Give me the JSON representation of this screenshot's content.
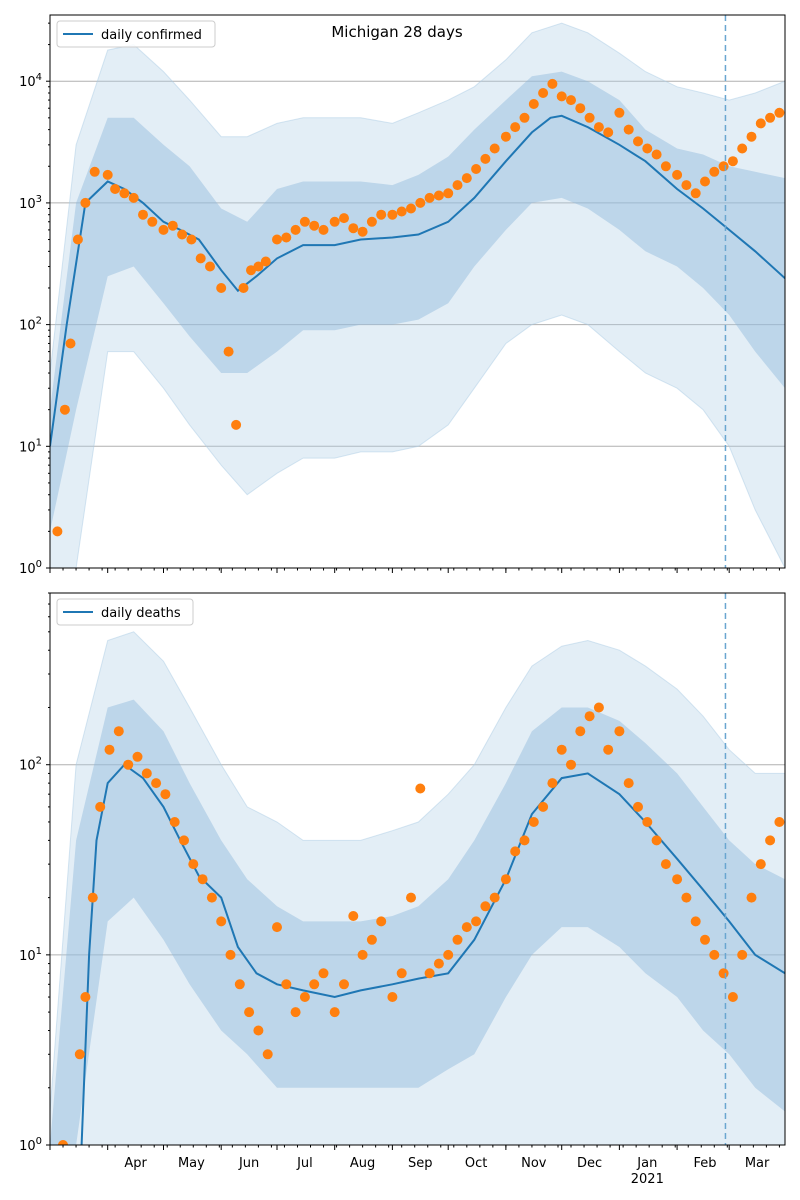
{
  "chart_data": [
    {
      "type": "line",
      "title": "Michigan 28 days",
      "legend": {
        "entries": [
          "daily confirmed"
        ],
        "placement": "upper-left"
      },
      "yscale": "log",
      "ylim": [
        1,
        35000
      ],
      "xlim": [
        "2020-03-01",
        "2021-03-31"
      ],
      "grid": "y-major",
      "y_ticks": [
        1,
        10,
        100,
        1000,
        10000
      ],
      "y_tick_labels": [
        "10^0",
        "10^1",
        "10^2",
        "10^3",
        "10^4"
      ],
      "vline_date": "2021-02-27",
      "bands": {
        "x": [
          "2020-03-01",
          "2020-03-15",
          "2020-04-01",
          "2020-04-15",
          "2020-05-01",
          "2020-05-15",
          "2020-06-01",
          "2020-06-15",
          "2020-07-01",
          "2020-07-15",
          "2020-08-01",
          "2020-08-15",
          "2020-09-01",
          "2020-09-15",
          "2020-10-01",
          "2020-10-15",
          "2020-11-01",
          "2020-11-15",
          "2020-12-01",
          "2020-12-15",
          "2021-01-01",
          "2021-01-15",
          "2021-02-01",
          "2021-02-15",
          "2021-03-01",
          "2021-03-15",
          "2021-03-31"
        ],
        "outer_upper": [
          40,
          3000,
          18000,
          20000,
          12000,
          7000,
          3500,
          3500,
          4500,
          5000,
          5000,
          5000,
          4500,
          5500,
          7000,
          9000,
          15000,
          25000,
          30000,
          25000,
          17000,
          12000,
          9000,
          8000,
          7000,
          8000,
          10000
        ],
        "outer_lower": [
          0.5,
          1,
          60,
          60,
          30,
          15,
          7,
          4,
          6,
          8,
          8,
          9,
          9,
          10,
          15,
          30,
          70,
          100,
          120,
          100,
          60,
          40,
          30,
          20,
          10,
          3,
          1
        ],
        "inner_upper": [
          20,
          1000,
          5000,
          5000,
          3000,
          2000,
          900,
          700,
          1300,
          1500,
          1500,
          1500,
          1400,
          1700,
          2400,
          4000,
          7000,
          11000,
          12000,
          10000,
          7000,
          4000,
          2800,
          2500,
          2000,
          1800,
          1600
        ],
        "inner_lower": [
          2,
          20,
          250,
          300,
          150,
          80,
          40,
          40,
          60,
          90,
          90,
          100,
          100,
          110,
          150,
          300,
          600,
          1000,
          1100,
          900,
          600,
          400,
          300,
          200,
          120,
          60,
          30
        ]
      },
      "series": [
        {
          "name": "daily confirmed",
          "kind": "line",
          "x": [
            "2020-03-01",
            "2020-03-10",
            "2020-03-20",
            "2020-04-01",
            "2020-04-10",
            "2020-04-20",
            "2020-05-01",
            "2020-05-10",
            "2020-05-20",
            "2020-06-01",
            "2020-06-10",
            "2020-06-20",
            "2020-07-01",
            "2020-07-15",
            "2020-08-01",
            "2020-08-15",
            "2020-09-01",
            "2020-09-15",
            "2020-10-01",
            "2020-10-15",
            "2020-11-01",
            "2020-11-15",
            "2020-11-25",
            "2020-12-01",
            "2020-12-15",
            "2021-01-01",
            "2021-01-15",
            "2021-02-01",
            "2021-02-15",
            "2021-03-01",
            "2021-03-15",
            "2021-03-31"
          ],
          "y": [
            10,
            100,
            1000,
            1500,
            1300,
            1000,
            700,
            600,
            500,
            280,
            190,
            250,
            350,
            450,
            450,
            500,
            520,
            550,
            700,
            1100,
            2200,
            3800,
            5000,
            5200,
            4200,
            3000,
            2200,
            1300,
            900,
            600,
            400,
            240
          ]
        },
        {
          "name": "daily confirmed observations",
          "kind": "scatter",
          "x": [
            "2020-03-05",
            "2020-03-09",
            "2020-03-12",
            "2020-03-16",
            "2020-03-20",
            "2020-03-25",
            "2020-04-01",
            "2020-04-05",
            "2020-04-10",
            "2020-04-15",
            "2020-04-20",
            "2020-04-25",
            "2020-05-01",
            "2020-05-06",
            "2020-05-11",
            "2020-05-16",
            "2020-05-21",
            "2020-05-26",
            "2020-06-01",
            "2020-06-05",
            "2020-06-09",
            "2020-06-13",
            "2020-06-17",
            "2020-06-21",
            "2020-06-25",
            "2020-07-01",
            "2020-07-06",
            "2020-07-11",
            "2020-07-16",
            "2020-07-21",
            "2020-07-26",
            "2020-08-01",
            "2020-08-06",
            "2020-08-11",
            "2020-08-16",
            "2020-08-21",
            "2020-08-26",
            "2020-09-01",
            "2020-09-06",
            "2020-09-11",
            "2020-09-16",
            "2020-09-21",
            "2020-09-26",
            "2020-10-01",
            "2020-10-06",
            "2020-10-11",
            "2020-10-16",
            "2020-10-21",
            "2020-10-26",
            "2020-11-01",
            "2020-11-06",
            "2020-11-11",
            "2020-11-16",
            "2020-11-21",
            "2020-11-26",
            "2020-12-01",
            "2020-12-06",
            "2020-12-11",
            "2020-12-16",
            "2020-12-21",
            "2020-12-26",
            "2021-01-01",
            "2021-01-06",
            "2021-01-11",
            "2021-01-16",
            "2021-01-21",
            "2021-01-26",
            "2021-02-01",
            "2021-02-06",
            "2021-02-11",
            "2021-02-16",
            "2021-02-21",
            "2021-02-26",
            "2021-03-03",
            "2021-03-08",
            "2021-03-13",
            "2021-03-18",
            "2021-03-23",
            "2021-03-28"
          ],
          "y": [
            2,
            20,
            70,
            500,
            1000,
            1800,
            1700,
            1300,
            1200,
            1100,
            800,
            700,
            600,
            650,
            550,
            500,
            350,
            300,
            200,
            60,
            15,
            200,
            280,
            300,
            330,
            500,
            520,
            600,
            700,
            650,
            600,
            700,
            750,
            620,
            580,
            700,
            800,
            800,
            850,
            900,
            1000,
            1100,
            1150,
            1200,
            1400,
            1600,
            1900,
            2300,
            2800,
            3500,
            4200,
            5000,
            6500,
            8000,
            9500,
            7500,
            7000,
            6000,
            5000,
            4200,
            3800,
            5500,
            4000,
            3200,
            2800,
            2500,
            2000,
            1700,
            1400,
            1200,
            1500,
            1800,
            2000,
            2200,
            2800,
            3500,
            4500,
            5000,
            5500
          ]
        }
      ]
    },
    {
      "type": "line",
      "legend": {
        "entries": [
          "daily deaths"
        ],
        "placement": "upper-left"
      },
      "yscale": "log",
      "ylim": [
        1,
        800
      ],
      "xlim": [
        "2020-03-01",
        "2021-03-31"
      ],
      "grid": "y-major",
      "y_ticks": [
        1,
        10,
        100
      ],
      "y_tick_labels": [
        "10^0",
        "10^1",
        "10^2"
      ],
      "x_tick_labels": [
        "Apr",
        "May",
        "Jun",
        "Jul",
        "Aug",
        "Sep",
        "Oct",
        "Nov",
        "Dec",
        "Jan",
        "Feb",
        "Mar"
      ],
      "x_tick_dates": [
        "2020-04-01",
        "2020-05-01",
        "2020-06-01",
        "2020-07-01",
        "2020-08-01",
        "2020-09-01",
        "2020-10-01",
        "2020-11-01",
        "2020-12-01",
        "2021-01-01",
        "2021-02-01",
        "2021-03-01"
      ],
      "x_year_label": "2021",
      "x_year_date": "2021-01-01",
      "vline_date": "2021-02-27",
      "bands": {
        "x": [
          "2020-03-01",
          "2020-03-15",
          "2020-04-01",
          "2020-04-15",
          "2020-05-01",
          "2020-05-15",
          "2020-06-01",
          "2020-06-15",
          "2020-07-01",
          "2020-07-15",
          "2020-08-01",
          "2020-08-15",
          "2020-09-01",
          "2020-09-15",
          "2020-10-01",
          "2020-10-15",
          "2020-11-01",
          "2020-11-15",
          "2020-12-01",
          "2020-12-15",
          "2021-01-01",
          "2021-01-15",
          "2021-02-01",
          "2021-02-15",
          "2021-03-01",
          "2021-03-15",
          "2021-03-31"
        ],
        "outer_upper": [
          1.5,
          100,
          450,
          500,
          350,
          200,
          100,
          60,
          50,
          40,
          40,
          40,
          45,
          50,
          70,
          100,
          200,
          330,
          420,
          450,
          400,
          330,
          250,
          180,
          120,
          90,
          90
        ],
        "outer_lower": [
          0.5,
          0.5,
          1,
          1,
          1,
          1,
          1,
          1,
          1,
          1,
          1,
          1,
          1,
          1,
          1,
          1,
          1,
          1,
          1,
          1,
          1,
          1,
          1,
          1,
          1,
          1,
          1
        ],
        "inner_upper": [
          1,
          40,
          200,
          220,
          150,
          80,
          40,
          25,
          18,
          15,
          15,
          15,
          16,
          18,
          25,
          40,
          80,
          150,
          200,
          200,
          170,
          130,
          90,
          60,
          40,
          30,
          25
        ],
        "inner_lower": [
          0.5,
          1,
          15,
          20,
          12,
          7,
          4,
          3,
          2,
          2,
          2,
          2,
          2,
          2,
          2.5,
          3,
          6,
          10,
          14,
          14,
          11,
          8,
          6,
          4,
          3,
          2,
          1.5
        ]
      },
      "series": [
        {
          "name": "daily deaths",
          "kind": "line",
          "x": [
            "2020-03-18",
            "2020-03-22",
            "2020-03-26",
            "2020-04-01",
            "2020-04-10",
            "2020-04-20",
            "2020-05-01",
            "2020-05-10",
            "2020-05-20",
            "2020-06-01",
            "2020-06-10",
            "2020-06-20",
            "2020-07-01",
            "2020-07-15",
            "2020-08-01",
            "2020-08-15",
            "2020-09-01",
            "2020-09-15",
            "2020-10-01",
            "2020-10-15",
            "2020-11-01",
            "2020-11-15",
            "2020-12-01",
            "2020-12-15",
            "2021-01-01",
            "2021-01-15",
            "2021-02-01",
            "2021-02-15",
            "2021-03-01",
            "2021-03-15",
            "2021-03-31"
          ],
          "y": [
            1,
            10,
            40,
            80,
            100,
            85,
            60,
            40,
            26,
            20,
            11,
            8,
            7,
            6.5,
            6,
            6.5,
            7,
            7.5,
            8,
            12,
            25,
            55,
            85,
            90,
            70,
            50,
            32,
            22,
            15,
            10,
            8
          ]
        },
        {
          "name": "daily deaths observations",
          "kind": "scatter",
          "x": [
            "2020-03-08",
            "2020-03-17",
            "2020-03-20",
            "2020-03-24",
            "2020-03-28",
            "2020-04-02",
            "2020-04-07",
            "2020-04-12",
            "2020-04-17",
            "2020-04-22",
            "2020-04-27",
            "2020-05-02",
            "2020-05-07",
            "2020-05-12",
            "2020-05-17",
            "2020-05-22",
            "2020-05-27",
            "2020-06-01",
            "2020-06-06",
            "2020-06-11",
            "2020-06-16",
            "2020-06-21",
            "2020-06-26",
            "2020-07-01",
            "2020-07-06",
            "2020-07-11",
            "2020-07-16",
            "2020-07-21",
            "2020-07-26",
            "2020-08-01",
            "2020-08-06",
            "2020-08-11",
            "2020-08-16",
            "2020-08-21",
            "2020-08-26",
            "2020-09-01",
            "2020-09-06",
            "2020-09-11",
            "2020-09-16",
            "2020-09-21",
            "2020-09-26",
            "2020-10-01",
            "2020-10-06",
            "2020-10-11",
            "2020-10-16",
            "2020-10-21",
            "2020-10-26",
            "2020-11-01",
            "2020-11-06",
            "2020-11-11",
            "2020-11-16",
            "2020-11-21",
            "2020-11-26",
            "2020-12-01",
            "2020-12-06",
            "2020-12-11",
            "2020-12-16",
            "2020-12-21",
            "2020-12-26",
            "2021-01-01",
            "2021-01-06",
            "2021-01-11",
            "2021-01-16",
            "2021-01-21",
            "2021-01-26",
            "2021-02-01",
            "2021-02-06",
            "2021-02-11",
            "2021-02-16",
            "2021-02-21",
            "2021-02-26",
            "2021-03-03",
            "2021-03-08",
            "2021-03-13",
            "2021-03-18",
            "2021-03-23",
            "2021-03-28"
          ],
          "y": [
            1,
            3,
            6,
            20,
            60,
            120,
            150,
            100,
            110,
            90,
            80,
            70,
            50,
            40,
            30,
            25,
            20,
            15,
            10,
            7,
            5,
            4,
            3,
            14,
            7,
            5,
            6,
            7,
            8,
            5,
            7,
            16,
            10,
            12,
            15,
            6,
            8,
            20,
            75,
            8,
            9,
            10,
            12,
            14,
            15,
            18,
            20,
            25,
            35,
            40,
            50,
            60,
            80,
            120,
            100,
            150,
            180,
            200,
            120,
            150,
            80,
            60,
            50,
            40,
            30,
            25,
            20,
            15,
            12,
            10,
            8,
            6,
            10,
            20,
            30,
            40,
            50
          ]
        }
      ]
    }
  ]
}
